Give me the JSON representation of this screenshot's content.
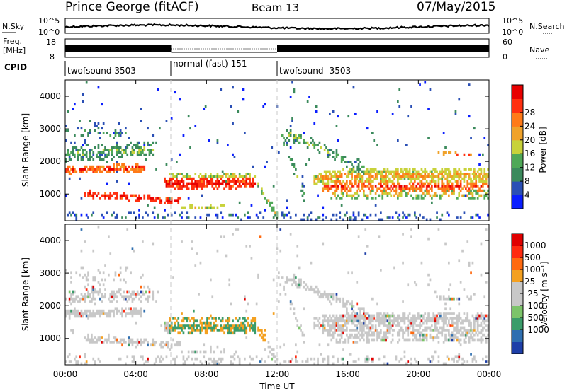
{
  "header": {
    "station": "Prince George (fitACF)",
    "beam": "Beam 13",
    "date": "07/May/2015"
  },
  "noise_panel": {
    "left_label": "N.Sky",
    "right_label": "N.Search",
    "tick_top": "10^5",
    "tick_bottom": "10^0"
  },
  "freq_panel": {
    "left_label_line1": "Freq.",
    "left_label_line2": "[MHz]",
    "right_label": "Nave",
    "left_ticks": [
      "18",
      "8"
    ],
    "right_ticks": [
      "60",
      "0"
    ]
  },
  "cpid": {
    "label": "CPID",
    "segments": [
      {
        "text": "twofsound 3503",
        "start": 0,
        "end": 6
      },
      {
        "text": "normal (fast) 151",
        "start": 6,
        "end": 12
      },
      {
        "text": "twofsound -3503",
        "start": 12,
        "end": 24
      }
    ]
  },
  "chart_data": [
    {
      "type": "heatmap",
      "name": "power",
      "ylabel": "Slant Range [km]",
      "xlabel": "",
      "ylim": [
        180,
        4500
      ],
      "yticks": [
        "1000",
        "2000",
        "3000",
        "4000"
      ],
      "xlim": [
        0,
        24
      ],
      "colorbar_label": "Power [dB]",
      "colorbar_ticks": [
        "4",
        "8",
        "12",
        "16",
        "20",
        "24",
        "28"
      ],
      "colors": [
        "#0a1eff",
        "#2a4fb5",
        "#3b8a5c",
        "#4fa857",
        "#c8d23a",
        "#f0a22a",
        "#ff7a18",
        "#ff3010",
        "#e80000"
      ]
    },
    {
      "type": "heatmap",
      "name": "velocity",
      "ylabel": "Slant Range [km]",
      "xlabel": "Time UT",
      "ylim": [
        180,
        4500
      ],
      "yticks": [
        "1000",
        "2000",
        "3000",
        "4000"
      ],
      "xlim": [
        0,
        24
      ],
      "xticks": [
        "00:00",
        "04:00",
        "08:00",
        "12:00",
        "16:00",
        "20:00",
        "00:00"
      ],
      "colorbar_label": "Velocity [m s⁻¹]",
      "colorbar_ticks": [
        "1000",
        "500",
        "100",
        "25",
        "-25",
        "-100",
        "-500",
        "-1000"
      ],
      "colors": [
        "#1e3fa8",
        "#2f6fb0",
        "#3a9c6a",
        "#7cc46a",
        "#c8c8c8",
        "#c8c8c8",
        "#f4a020",
        "#ff6a10",
        "#ff2a10",
        "#e00000"
      ]
    }
  ]
}
